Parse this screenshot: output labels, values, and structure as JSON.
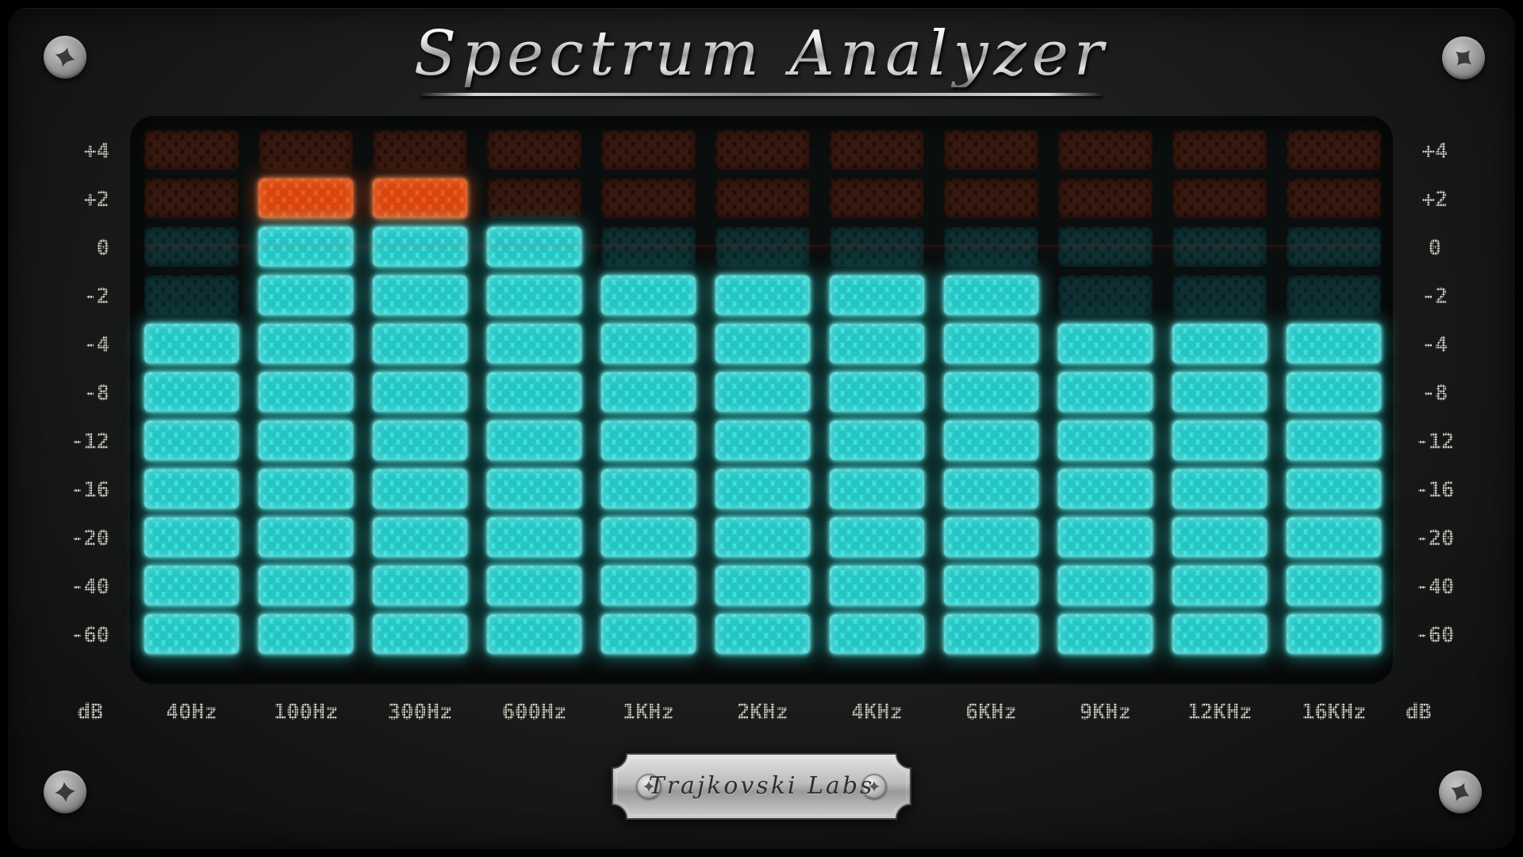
{
  "window": {
    "title": "Spectrum Analyzer"
  },
  "badge": {
    "label": "Trajkovski Labs"
  },
  "unit_label": "dB",
  "chart_data": {
    "type": "bar",
    "subtype": "led-spectrum-analyzer",
    "title": "Spectrum Analyzer",
    "categories": [
      "40Hz",
      "100Hz",
      "300Hz",
      "600Hz",
      "1KHz",
      "2KHz",
      "4KHz",
      "6KHz",
      "9KHz",
      "12KHz",
      "16KHz"
    ],
    "values_db": [
      -4,
      2,
      2,
      0,
      -2,
      -2,
      -2,
      -2,
      -4,
      -4,
      -4
    ],
    "row_scale_db": [
      "+4",
      "+2",
      "0",
      "-2",
      "-4",
      "-8",
      "-12",
      "-16",
      "-20",
      "-40",
      "-60"
    ],
    "top_lit_row_index": [
      4,
      1,
      1,
      2,
      3,
      3,
      3,
      3,
      4,
      4,
      4
    ],
    "red_zone_rows": 2,
    "ylabel": "dB",
    "legend": "none",
    "grid": "led-matrix 11x11",
    "colors": {
      "lit_cyan": "#3be6e2",
      "lit_orange": "#f95a1c",
      "unlit_red": "#1d0e09",
      "unlit_teal": "#0a1f22",
      "label_text": "#d9d6cb"
    }
  }
}
